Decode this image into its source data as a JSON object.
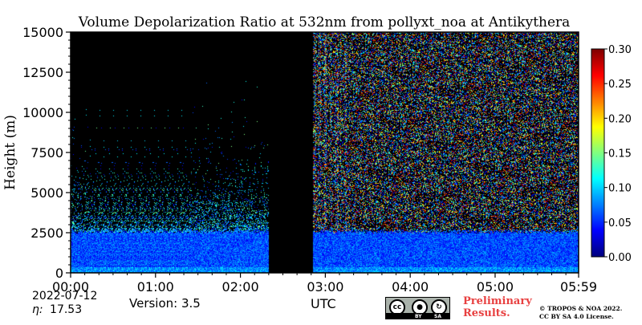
{
  "chart_data": {
    "type": "heatmap",
    "title": "Volume Depolarization Ratio at 532nm from pollyxt_noa at Antikythera",
    "xlabel": "UTC",
    "ylabel": "Height (m)",
    "x_range_hours": [
      0,
      5.9833
    ],
    "y_range": [
      0,
      15000
    ],
    "x_ticks": [
      {
        "value": 0,
        "label": "00:00"
      },
      {
        "value": 1,
        "label": "01:00"
      },
      {
        "value": 2,
        "label": "02:00"
      },
      {
        "value": 3,
        "label": "03:00"
      },
      {
        "value": 4,
        "label": "04:00"
      },
      {
        "value": 5,
        "label": "05:00"
      },
      {
        "value": 5.9833,
        "label": "05:59"
      }
    ],
    "y_ticks": [
      0,
      2500,
      5000,
      7500,
      10000,
      12500,
      15000
    ],
    "colorbar": {
      "min": 0.0,
      "max": 0.3,
      "ticks": [
        "0.00",
        "0.05",
        "0.10",
        "0.15",
        "0.20",
        "0.25",
        "0.30"
      ],
      "colormap": "jet"
    },
    "features": {
      "boundary_layer_top_m": 2600,
      "no_data_gap_hours": [
        2.33,
        2.85
      ],
      "noisy_high_altitude_from_hours": 2.85
    }
  },
  "footer": {
    "date": "2022-07-12",
    "eta_label": "η:",
    "eta_value": "17.53",
    "version": "Version: 3.5",
    "utc_label": "UTC",
    "preliminary_line1": "Preliminary",
    "preliminary_line2": "Results.",
    "copyright_line1": "© TROPOS & NOA 2022.",
    "copyright_line2": "CC BY SA 4.0 License.",
    "cc_badge": {
      "cc": "cc",
      "by": "BY",
      "sa": "SA"
    }
  },
  "colors": {
    "background": "#ffffff",
    "no_data": "#000000",
    "preliminary": "#e84040"
  }
}
